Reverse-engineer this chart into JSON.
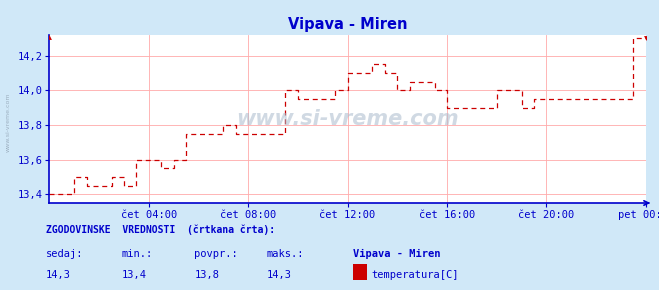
{
  "title": "Vipava - Miren",
  "title_color": "#0000cc",
  "bg_color": "#d0e8f8",
  "plot_bg_color": "#ffffff",
  "grid_color": "#ffaaaa",
  "axis_color": "#0000cc",
  "line_color": "#cc0000",
  "text_color": "#0000cc",
  "ylim": [
    13.35,
    14.32
  ],
  "yticks": [
    13.4,
    13.6,
    13.8,
    14.0,
    14.2
  ],
  "xtick_labels": [
    "čet 04:00",
    "čet 08:00",
    "čet 12:00",
    "čet 16:00",
    "čet 20:00",
    "pet 00:00"
  ],
  "watermark": "www.si-vreme.com",
  "footer_line1": "ZGODOVINSKE  VREDNOSTI  (črtkana črta):",
  "footer_labels": [
    "sedaj:",
    "min.:",
    "povpr.:",
    "maks.:"
  ],
  "footer_values": [
    "14,3",
    "13,4",
    "13,8",
    "14,3"
  ],
  "footer_station": "Vipava - Miren",
  "footer_param": "temperatura[C]",
  "time_hours": [
    0.0,
    1.0,
    1.0,
    1.5,
    1.5,
    2.5,
    2.5,
    3.0,
    3.0,
    3.5,
    3.5,
    4.5,
    4.5,
    5.0,
    5.0,
    5.5,
    5.5,
    7.0,
    7.0,
    7.5,
    7.5,
    9.5,
    9.5,
    10.0,
    10.0,
    11.5,
    11.5,
    12.0,
    12.0,
    13.0,
    13.0,
    13.5,
    13.5,
    14.0,
    14.0,
    14.5,
    14.5,
    15.5,
    15.5,
    16.0,
    16.0,
    18.0,
    18.0,
    19.0,
    19.0,
    19.5,
    19.5,
    23.5,
    23.5,
    24.0
  ],
  "temp_vals": [
    13.4,
    13.4,
    13.5,
    13.5,
    13.45,
    13.45,
    13.5,
    13.5,
    13.45,
    13.45,
    13.6,
    13.6,
    13.55,
    13.55,
    13.6,
    13.6,
    13.75,
    13.75,
    13.8,
    13.8,
    13.75,
    13.75,
    14.0,
    14.0,
    13.95,
    13.95,
    14.0,
    14.0,
    14.1,
    14.1,
    14.15,
    14.15,
    14.1,
    14.1,
    14.0,
    14.0,
    14.05,
    14.05,
    14.0,
    14.0,
    13.9,
    13.9,
    14.0,
    14.0,
    13.9,
    13.9,
    13.95,
    13.95,
    14.3,
    14.3
  ]
}
